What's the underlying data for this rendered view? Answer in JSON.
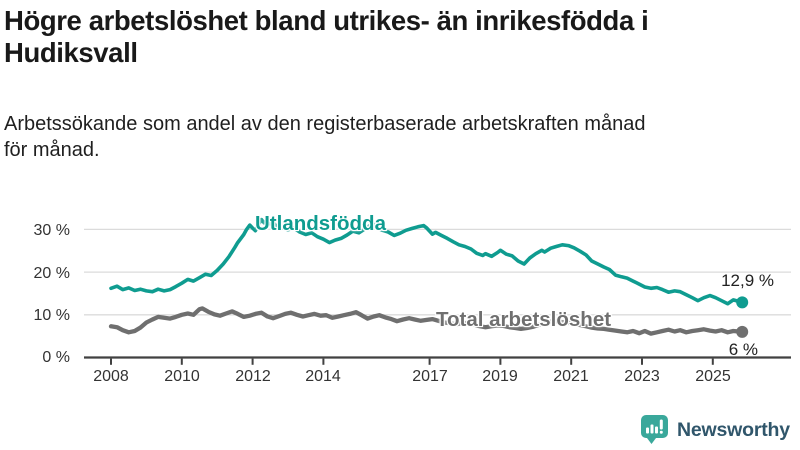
{
  "chart_data": {
    "type": "line",
    "title": "Högre arbetslöshet bland utrikes- än inrikesfödda i Hudiksvall",
    "subtitle": "Arbetssökande som andel av den registerbaserade arbetskraften månad för månad.",
    "subtitle_lines": [
      "Arbetssökande som andel av den registerbaserade arbetskraften månad",
      "för månad."
    ],
    "unit": "%",
    "grid": "horizontal-only",
    "legend_position": "inline-labels-on-lines",
    "ylim": [
      0,
      33.5
    ],
    "x_range": [
      2008.0,
      2025.92
    ],
    "y_ticks": [
      30,
      20,
      10,
      0
    ],
    "y_tick_labels": [
      "30 %",
      "20 %",
      "10 %",
      "0 %"
    ],
    "x_tick_years": [
      2008,
      2010,
      2012,
      2014,
      2017,
      2019,
      2021,
      2023,
      2025
    ],
    "x_tick_labels": [
      "2008",
      "2010",
      "2012",
      "2014",
      "2017",
      "2019",
      "2021",
      "2023",
      "2025"
    ],
    "series": [
      {
        "name": "Utlandsfödda",
        "label": "Utlandsfödda",
        "color": "#0f9c90",
        "end_value": 12.9,
        "end_label": "12,9 %",
        "points": [
          [
            2008.0,
            16.2
          ],
          [
            2008.17,
            16.7
          ],
          [
            2008.33,
            15.9
          ],
          [
            2008.5,
            16.3
          ],
          [
            2008.67,
            15.7
          ],
          [
            2008.83,
            16.0
          ],
          [
            2009.0,
            15.6
          ],
          [
            2009.17,
            15.4
          ],
          [
            2009.33,
            16.0
          ],
          [
            2009.5,
            15.6
          ],
          [
            2009.67,
            15.9
          ],
          [
            2009.83,
            16.6
          ],
          [
            2010.0,
            17.4
          ],
          [
            2010.17,
            18.3
          ],
          [
            2010.33,
            17.9
          ],
          [
            2010.5,
            18.7
          ],
          [
            2010.67,
            19.5
          ],
          [
            2010.83,
            19.2
          ],
          [
            2011.0,
            20.4
          ],
          [
            2011.17,
            21.9
          ],
          [
            2011.33,
            23.6
          ],
          [
            2011.5,
            25.8
          ],
          [
            2011.58,
            26.9
          ],
          [
            2011.67,
            27.9
          ],
          [
            2011.75,
            28.8
          ],
          [
            2011.83,
            30.0
          ],
          [
            2011.92,
            31.0
          ],
          [
            2012.0,
            30.3
          ],
          [
            2012.08,
            29.7
          ],
          [
            2012.17,
            31.2
          ],
          [
            2012.25,
            32.3
          ],
          [
            2012.33,
            31.5
          ],
          [
            2012.42,
            31.9
          ],
          [
            2012.5,
            31.3
          ],
          [
            2012.58,
            31.6
          ],
          [
            2012.67,
            30.8
          ],
          [
            2012.83,
            30.4
          ],
          [
            2013.0,
            29.9
          ],
          [
            2013.17,
            30.3
          ],
          [
            2013.33,
            29.4
          ],
          [
            2013.5,
            28.8
          ],
          [
            2013.67,
            29.2
          ],
          [
            2013.83,
            28.3
          ],
          [
            2014.0,
            27.7
          ],
          [
            2014.17,
            26.9
          ],
          [
            2014.33,
            27.5
          ],
          [
            2014.5,
            27.9
          ],
          [
            2014.67,
            28.7
          ],
          [
            2014.83,
            29.6
          ],
          [
            2015.0,
            29.2
          ],
          [
            2015.17,
            30.1
          ],
          [
            2015.33,
            31.0
          ],
          [
            2015.42,
            31.2
          ],
          [
            2015.5,
            30.4
          ],
          [
            2015.67,
            29.8
          ],
          [
            2015.83,
            29.4
          ],
          [
            2016.0,
            28.6
          ],
          [
            2016.17,
            29.1
          ],
          [
            2016.33,
            29.8
          ],
          [
            2016.5,
            30.2
          ],
          [
            2016.67,
            30.6
          ],
          [
            2016.83,
            30.9
          ],
          [
            2016.92,
            30.3
          ],
          [
            2017.0,
            29.6
          ],
          [
            2017.08,
            28.9
          ],
          [
            2017.17,
            29.3
          ],
          [
            2017.33,
            28.6
          ],
          [
            2017.5,
            27.9
          ],
          [
            2017.67,
            27.1
          ],
          [
            2017.83,
            26.4
          ],
          [
            2018.0,
            26.0
          ],
          [
            2018.17,
            25.4
          ],
          [
            2018.33,
            24.4
          ],
          [
            2018.5,
            23.9
          ],
          [
            2018.58,
            24.3
          ],
          [
            2018.75,
            23.7
          ],
          [
            2018.92,
            24.6
          ],
          [
            2019.0,
            25.1
          ],
          [
            2019.17,
            24.2
          ],
          [
            2019.33,
            23.8
          ],
          [
            2019.5,
            22.6
          ],
          [
            2019.67,
            21.9
          ],
          [
            2019.83,
            23.3
          ],
          [
            2020.0,
            24.3
          ],
          [
            2020.17,
            25.1
          ],
          [
            2020.25,
            24.7
          ],
          [
            2020.42,
            25.6
          ],
          [
            2020.58,
            26.0
          ],
          [
            2020.75,
            26.4
          ],
          [
            2020.92,
            26.2
          ],
          [
            2021.08,
            25.7
          ],
          [
            2021.25,
            24.9
          ],
          [
            2021.42,
            24.0
          ],
          [
            2021.58,
            22.6
          ],
          [
            2021.75,
            21.9
          ],
          [
            2021.92,
            21.2
          ],
          [
            2022.08,
            20.6
          ],
          [
            2022.25,
            19.3
          ],
          [
            2022.42,
            18.9
          ],
          [
            2022.58,
            18.6
          ],
          [
            2022.75,
            17.9
          ],
          [
            2022.92,
            17.2
          ],
          [
            2023.08,
            16.5
          ],
          [
            2023.25,
            16.2
          ],
          [
            2023.42,
            16.4
          ],
          [
            2023.58,
            15.9
          ],
          [
            2023.75,
            15.3
          ],
          [
            2023.92,
            15.6
          ],
          [
            2024.08,
            15.4
          ],
          [
            2024.25,
            14.7
          ],
          [
            2024.42,
            14.0
          ],
          [
            2024.58,
            13.3
          ],
          [
            2024.75,
            14.0
          ],
          [
            2024.92,
            14.5
          ],
          [
            2025.08,
            14.0
          ],
          [
            2025.25,
            13.3
          ],
          [
            2025.42,
            12.6
          ],
          [
            2025.58,
            13.5
          ],
          [
            2025.83,
            12.9
          ]
        ]
      },
      {
        "name": "Total arbetslöshet",
        "label": "Total arbetslöshet",
        "color": "#6f6f6f",
        "end_value": 6.0,
        "end_label": "6 %",
        "points": [
          [
            2008.0,
            7.3
          ],
          [
            2008.17,
            7.1
          ],
          [
            2008.33,
            6.4
          ],
          [
            2008.5,
            5.9
          ],
          [
            2008.67,
            6.2
          ],
          [
            2008.83,
            7.0
          ],
          [
            2009.0,
            8.2
          ],
          [
            2009.17,
            8.9
          ],
          [
            2009.33,
            9.5
          ],
          [
            2009.5,
            9.3
          ],
          [
            2009.67,
            9.1
          ],
          [
            2009.83,
            9.5
          ],
          [
            2010.0,
            10.0
          ],
          [
            2010.17,
            10.3
          ],
          [
            2010.33,
            10.0
          ],
          [
            2010.5,
            11.3
          ],
          [
            2010.58,
            11.5
          ],
          [
            2010.75,
            10.7
          ],
          [
            2010.92,
            10.1
          ],
          [
            2011.08,
            9.8
          ],
          [
            2011.25,
            10.3
          ],
          [
            2011.42,
            10.8
          ],
          [
            2011.58,
            10.2
          ],
          [
            2011.75,
            9.5
          ],
          [
            2011.92,
            9.8
          ],
          [
            2012.08,
            10.2
          ],
          [
            2012.25,
            10.5
          ],
          [
            2012.42,
            9.6
          ],
          [
            2012.58,
            9.2
          ],
          [
            2012.75,
            9.7
          ],
          [
            2012.92,
            10.2
          ],
          [
            2013.08,
            10.5
          ],
          [
            2013.25,
            10.0
          ],
          [
            2013.42,
            9.6
          ],
          [
            2013.58,
            9.9
          ],
          [
            2013.75,
            10.2
          ],
          [
            2013.92,
            9.8
          ],
          [
            2014.08,
            9.9
          ],
          [
            2014.25,
            9.3
          ],
          [
            2014.42,
            9.6
          ],
          [
            2014.58,
            9.9
          ],
          [
            2014.75,
            10.2
          ],
          [
            2014.92,
            10.6
          ],
          [
            2015.08,
            9.9
          ],
          [
            2015.25,
            9.1
          ],
          [
            2015.42,
            9.6
          ],
          [
            2015.58,
            9.9
          ],
          [
            2015.75,
            9.4
          ],
          [
            2015.92,
            9.0
          ],
          [
            2016.08,
            8.5
          ],
          [
            2016.25,
            8.9
          ],
          [
            2016.42,
            9.2
          ],
          [
            2016.58,
            8.9
          ],
          [
            2016.75,
            8.6
          ],
          [
            2016.92,
            8.8
          ],
          [
            2017.08,
            9.0
          ],
          [
            2017.25,
            8.6
          ],
          [
            2017.42,
            8.2
          ],
          [
            2017.58,
            8.0
          ],
          [
            2017.75,
            7.8
          ],
          [
            2017.92,
            8.0
          ],
          [
            2018.08,
            8.1
          ],
          [
            2018.25,
            7.7
          ],
          [
            2018.42,
            7.3
          ],
          [
            2018.58,
            7.1
          ],
          [
            2018.75,
            7.3
          ],
          [
            2018.92,
            7.5
          ],
          [
            2019.08,
            7.4
          ],
          [
            2019.25,
            7.1
          ],
          [
            2019.42,
            6.9
          ],
          [
            2019.58,
            6.7
          ],
          [
            2019.75,
            6.9
          ],
          [
            2019.92,
            7.2
          ],
          [
            2020.08,
            7.6
          ],
          [
            2020.25,
            8.1
          ],
          [
            2020.42,
            8.4
          ],
          [
            2020.58,
            8.5
          ],
          [
            2020.75,
            8.3
          ],
          [
            2020.92,
            8.1
          ],
          [
            2021.08,
            7.9
          ],
          [
            2021.25,
            7.6
          ],
          [
            2021.42,
            7.3
          ],
          [
            2021.58,
            7.0
          ],
          [
            2021.75,
            6.8
          ],
          [
            2021.92,
            6.7
          ],
          [
            2022.08,
            6.5
          ],
          [
            2022.25,
            6.3
          ],
          [
            2022.42,
            6.1
          ],
          [
            2022.58,
            5.9
          ],
          [
            2022.75,
            6.2
          ],
          [
            2022.92,
            5.7
          ],
          [
            2023.08,
            6.2
          ],
          [
            2023.25,
            5.6
          ],
          [
            2023.42,
            5.9
          ],
          [
            2023.58,
            6.2
          ],
          [
            2023.75,
            6.5
          ],
          [
            2023.92,
            6.1
          ],
          [
            2024.08,
            6.4
          ],
          [
            2024.25,
            5.9
          ],
          [
            2024.42,
            6.2
          ],
          [
            2024.58,
            6.4
          ],
          [
            2024.75,
            6.6
          ],
          [
            2024.92,
            6.3
          ],
          [
            2025.08,
            6.1
          ],
          [
            2025.25,
            6.4
          ],
          [
            2025.42,
            5.9
          ],
          [
            2025.58,
            6.2
          ],
          [
            2025.83,
            6.0
          ]
        ]
      }
    ],
    "colors": {
      "foreign_born_line": "#0f9c90",
      "total_line": "#6f6f6f",
      "axis": "#414141",
      "gridline": "#dbdbdb",
      "brand_teal": "#3aa89b",
      "brand_text": "#30566b"
    }
  },
  "footer": {
    "brand": "Newsworthy"
  }
}
